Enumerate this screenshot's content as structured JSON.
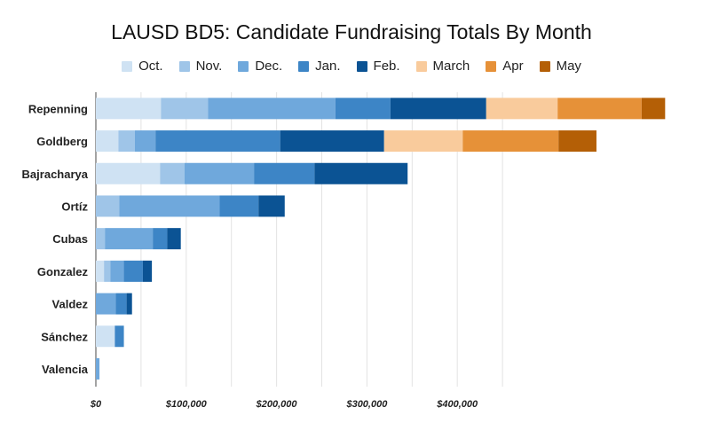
{
  "chart_data": {
    "type": "bar",
    "orientation": "horizontal",
    "stacked": true,
    "title": "LAUSD BD5: Candidate Fundraising Totals By Month",
    "xlabel": "",
    "ylabel": "",
    "xlim": [
      0,
      400000
    ],
    "xticks": [
      0,
      100000,
      200000,
      300000,
      400000
    ],
    "xtick_labels": [
      "$0",
      "$100,000",
      "$200,000",
      "$300,000",
      "$400,000"
    ],
    "grid": true,
    "legend_position": "top",
    "categories": [
      "Repenning",
      "Goldberg",
      "Bajracharya",
      "Ortíz",
      "Cubas",
      "Gonzalez",
      "Valdez",
      "Sánchez",
      "Valencia"
    ],
    "series": [
      {
        "name": "Oct.",
        "color": "#cfe2f3",
        "values": [
          72000,
          25000,
          71000,
          0,
          0,
          9000,
          0,
          21000,
          0
        ]
      },
      {
        "name": "Nov.",
        "color": "#9fc5e8",
        "values": [
          52000,
          18000,
          27000,
          26000,
          10000,
          7000,
          0,
          0,
          0
        ]
      },
      {
        "name": "Dec.",
        "color": "#6fa8dc",
        "values": [
          141000,
          23000,
          77000,
          111000,
          53000,
          15000,
          22000,
          0,
          4000
        ]
      },
      {
        "name": "Jan.",
        "color": "#3d85c6",
        "values": [
          61000,
          138000,
          67000,
          43000,
          16000,
          21000,
          12000,
          10000,
          0
        ]
      },
      {
        "name": "Feb.",
        "color": "#0b5394",
        "values": [
          106000,
          115000,
          103000,
          29000,
          15000,
          10000,
          6000,
          0,
          0
        ]
      },
      {
        "name": "March",
        "color": "#f9cb9c",
        "values": [
          79000,
          87000,
          0,
          0,
          0,
          0,
          0,
          0,
          0
        ]
      },
      {
        "name": "Apr",
        "color": "#e69138",
        "values": [
          93000,
          106000,
          0,
          0,
          0,
          0,
          0,
          0,
          0
        ]
      },
      {
        "name": "May",
        "color": "#b45f06",
        "values": [
          26000,
          42000,
          0,
          0,
          0,
          0,
          0,
          0,
          0
        ]
      }
    ]
  }
}
